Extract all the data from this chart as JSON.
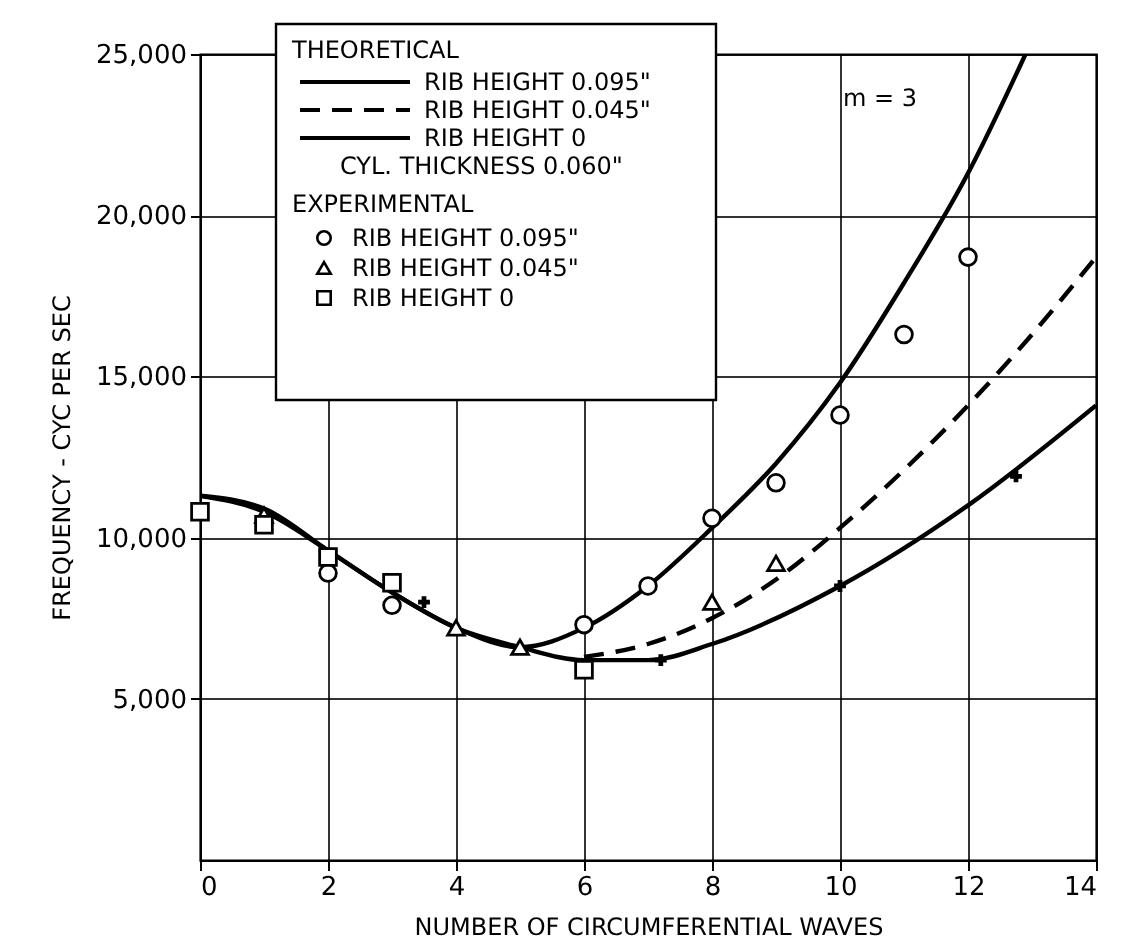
{
  "chart_data": {
    "type": "line",
    "xlabel": "NUMBER OF CIRCUMFERENTIAL WAVES",
    "ylabel": "FREQUENCY - CYC PER SEC",
    "xlim": [
      0,
      14
    ],
    "xticks": [
      0,
      2,
      4,
      6,
      8,
      10,
      12,
      14
    ],
    "ylim": [
      0,
      25000
    ],
    "yticks": [
      {
        "value": 5000,
        "label": "5,000"
      },
      {
        "value": 10000,
        "label": "10,000"
      },
      {
        "value": 15000,
        "label": "15,000"
      },
      {
        "value": 20000,
        "label": "20,000"
      },
      {
        "value": 25000,
        "label": "25,000"
      }
    ],
    "grid": true,
    "legend": "top left",
    "annotations": [
      "THEORETICAL",
      "CYL. THICKNESS 0.060\"",
      "EXPERIMENTAL",
      "m = 3"
    ],
    "series": [
      {
        "name": "RIB HEIGHT 0.095\"",
        "color": "#000000",
        "line_style": "solid",
        "x": [
          0,
          1,
          2,
          3,
          4,
          5,
          6,
          7,
          8,
          9,
          10,
          11,
          12,
          12.9
        ],
        "values": [
          11300,
          10800,
          9600,
          8300,
          7200,
          6600,
          7200,
          8500,
          10300,
          12300,
          14800,
          17900,
          21300,
          25000
        ]
      },
      {
        "name": "RIB HEIGHT 0.045\"",
        "color": "#000000",
        "line_style": "dashed",
        "x": [
          6,
          7,
          8,
          9,
          10,
          11,
          12,
          13,
          14
        ],
        "values": [
          6300,
          6700,
          7500,
          8700,
          10300,
          12100,
          14100,
          16300,
          18700
        ]
      },
      {
        "name": "RIB HEIGHT 0",
        "color": "#000000",
        "line_style": "solid",
        "x": [
          0,
          1,
          2,
          3,
          4,
          5,
          6,
          7,
          8,
          10,
          12,
          14
        ],
        "values": [
          11300,
          10900,
          9600,
          8300,
          7200,
          6600,
          6200,
          6200,
          6700,
          8500,
          11000,
          14100
        ]
      },
      {
        "type": "scatter",
        "color": "#000000",
        "marker": "cross",
        "x": [
          3.5,
          7.2,
          10,
          12.75
        ],
        "values": [
          8000,
          6200,
          8500,
          11900
        ]
      },
      {
        "type": "scatter",
        "name": "RIB HEIGHT 0.095\"",
        "color": "#000000",
        "marker": "circle",
        "x": [
          2,
          3,
          6,
          7,
          8,
          9,
          10,
          11,
          12
        ],
        "values": [
          8900,
          7900,
          7300,
          8500,
          10600,
          11700,
          13800,
          16300,
          18700
        ]
      },
      {
        "type": "scatter",
        "name": "RIB HEIGHT 0.045\"",
        "color": "#000000",
        "marker": "triangle",
        "x": [
          1,
          4,
          5,
          8,
          9
        ],
        "values": [
          10700,
          7200,
          6600,
          8000,
          9200
        ]
      },
      {
        "type": "scatter",
        "name": "RIB HEIGHT 0",
        "color": "#000000",
        "marker": "square",
        "x": [
          0,
          1,
          2,
          3,
          6
        ],
        "values": [
          10800,
          10400,
          9400,
          8600,
          5900
        ]
      }
    ]
  }
}
